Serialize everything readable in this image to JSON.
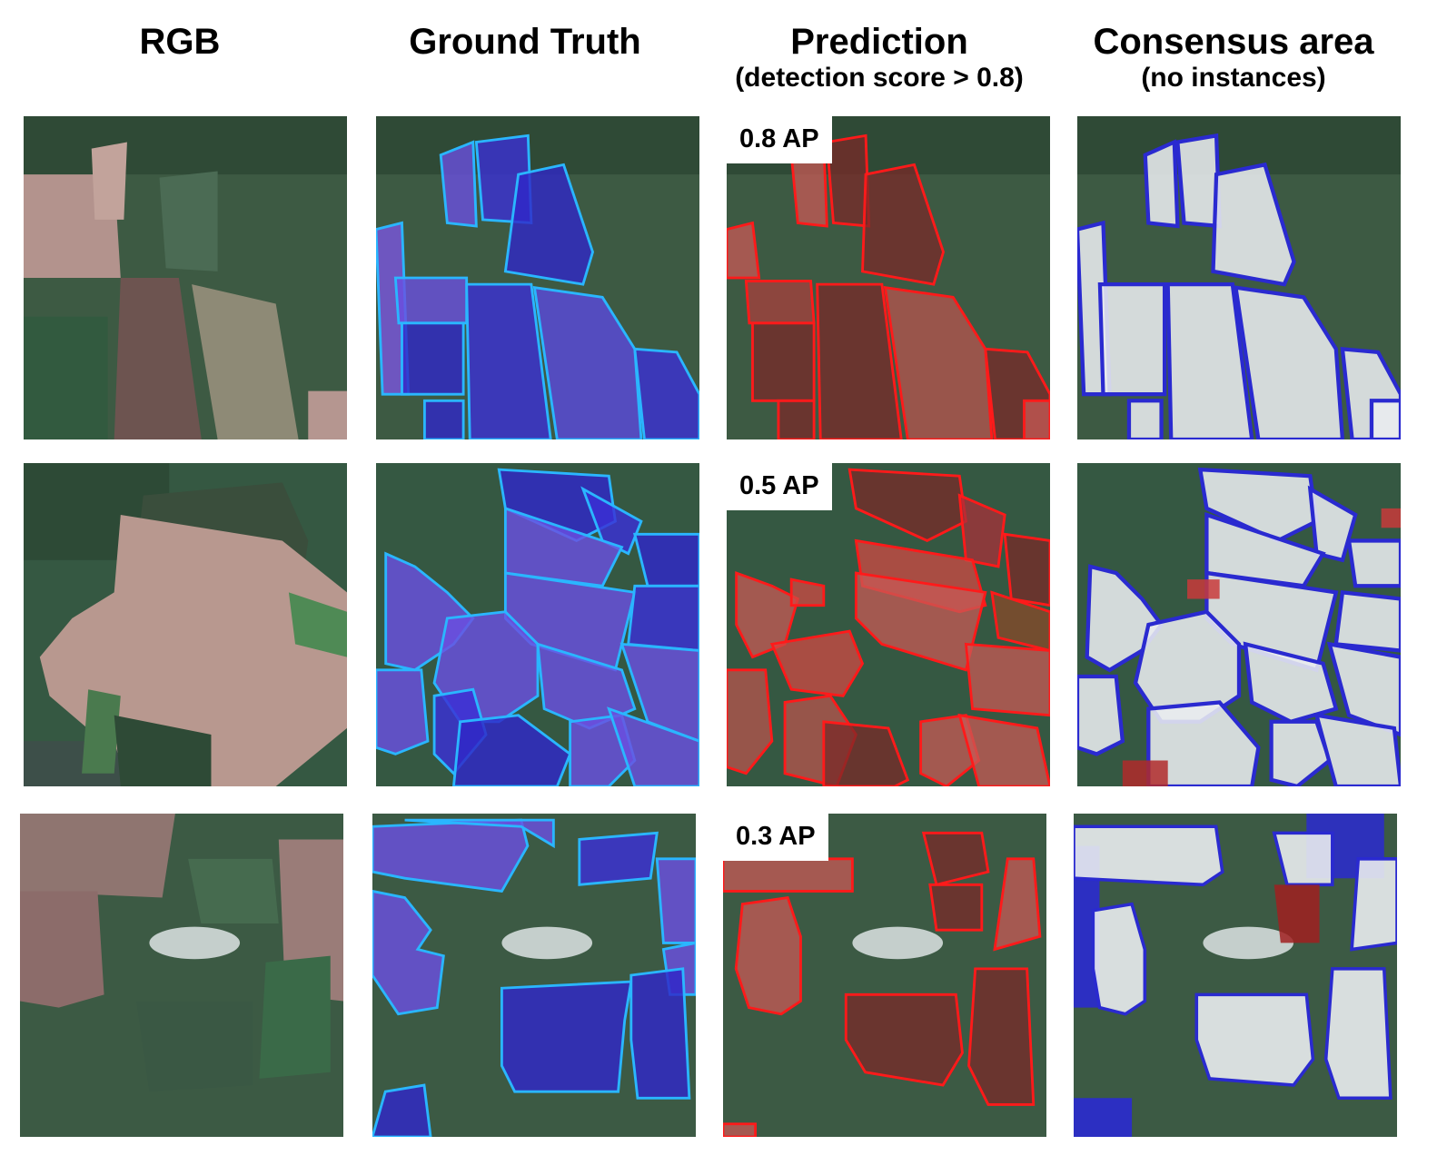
{
  "columns": [
    {
      "title": "RGB",
      "subtitle": ""
    },
    {
      "title": "Ground Truth",
      "subtitle": ""
    },
    {
      "title": "Prediction",
      "subtitle": "(detection score > 0.8)"
    },
    {
      "title": "Consensus area",
      "subtitle": "(no instances)"
    }
  ],
  "rows": [
    {
      "ap_label": "0.8 AP"
    },
    {
      "ap_label": "0.5 AP"
    },
    {
      "ap_label": "0.3 AP"
    }
  ],
  "colors": {
    "ground_truth_fill": "#3b2fd6",
    "ground_truth_outline": "#2ab6ff",
    "prediction_fill": "#d8262a",
    "prediction_outline": "#ff1a1a",
    "consensus_fill": "#e9ecef",
    "terrain_base": "#3f5f45",
    "field_tone": "#b89a92"
  }
}
